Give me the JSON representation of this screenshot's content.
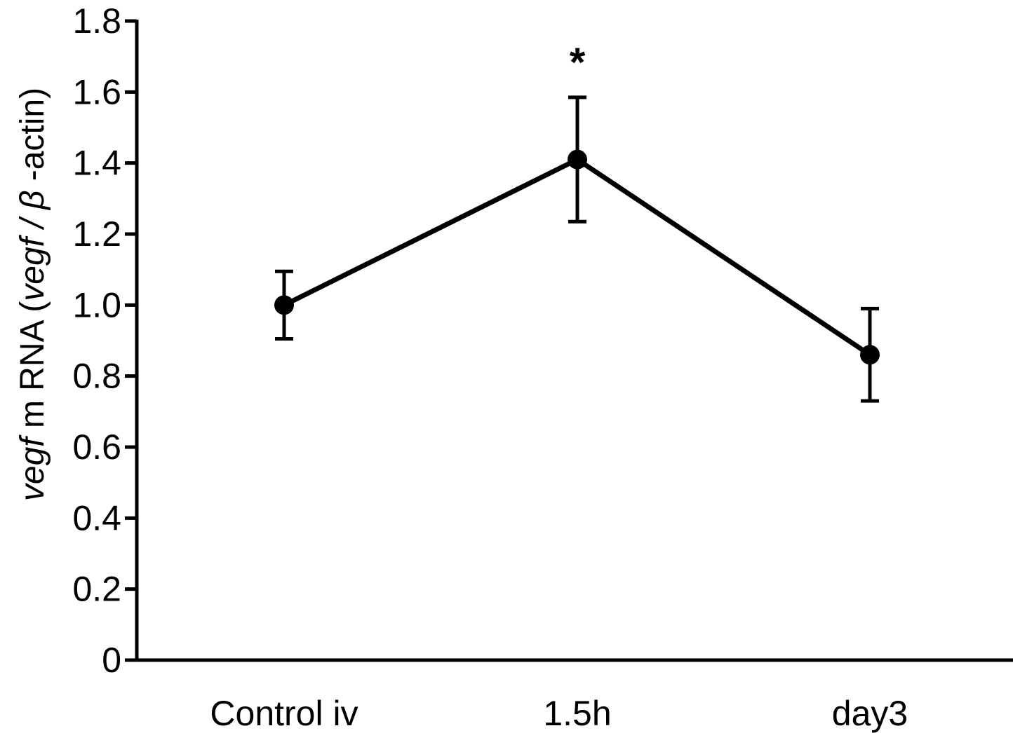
{
  "chart_data": {
    "type": "line",
    "categories": [
      "Control iv",
      "1.5h",
      "day3"
    ],
    "values": [
      1.0,
      1.41,
      0.86
    ],
    "error": [
      0.095,
      0.175,
      0.13
    ],
    "ylim": [
      0,
      1.8
    ],
    "yticks": [
      "0",
      "0.2",
      "0.4",
      "0.6",
      "0.8",
      "1.0",
      "1.2",
      "1.4",
      "1.6",
      "1.8"
    ],
    "ylabel": {
      "part1": "vegf",
      "part2": " m RNA (",
      "part3": "vegf / β",
      "part4": " -actin)"
    },
    "annotations": [
      {
        "category": "1.5h",
        "text": "*"
      }
    ],
    "grid": false,
    "line_color": "#000000"
  }
}
